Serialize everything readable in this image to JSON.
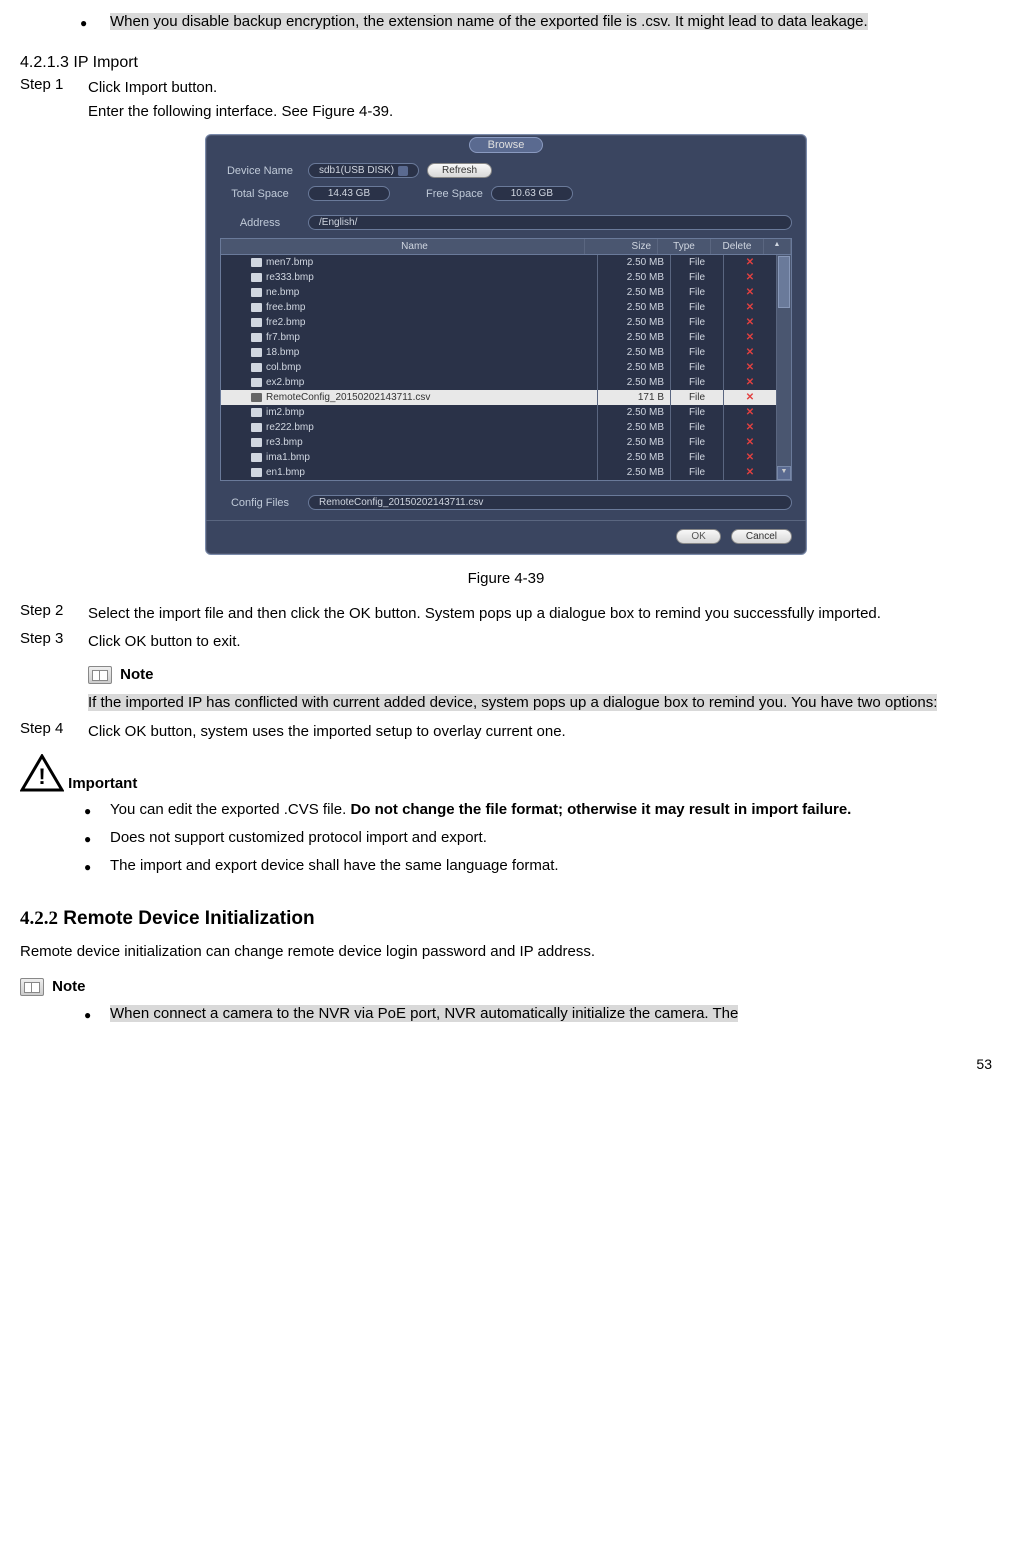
{
  "top_bullet": {
    "prefix": "When you disable backup encryption, the extension name of the exported file is .csv. It might lead to data leakage."
  },
  "section_4213": "4.2.1.3  IP Import",
  "step1_label": "Step 1",
  "step1_line1": "Click Import button.",
  "step1_line2": "Enter the following interface. See Figure 4-39.",
  "browse": {
    "title": "Browse",
    "device_name_label": "Device Name",
    "device_name_value": "sdb1(USB DISK)",
    "refresh": "Refresh",
    "total_space_label": "Total Space",
    "total_space_value": "14.43 GB",
    "free_space_label": "Free Space",
    "free_space_value": "10.63 GB",
    "address_label": "Address",
    "address_value": "/English/",
    "col_name": "Name",
    "col_size": "Size",
    "col_type": "Type",
    "col_del": "Delete",
    "rows": [
      {
        "name": "men7.bmp",
        "size": "2.50 MB",
        "type": "File"
      },
      {
        "name": "re333.bmp",
        "size": "2.50 MB",
        "type": "File"
      },
      {
        "name": "ne.bmp",
        "size": "2.50 MB",
        "type": "File"
      },
      {
        "name": "free.bmp",
        "size": "2.50 MB",
        "type": "File"
      },
      {
        "name": "fre2.bmp",
        "size": "2.50 MB",
        "type": "File"
      },
      {
        "name": "fr7.bmp",
        "size": "2.50 MB",
        "type": "File"
      },
      {
        "name": "18.bmp",
        "size": "2.50 MB",
        "type": "File"
      },
      {
        "name": "col.bmp",
        "size": "2.50 MB",
        "type": "File"
      },
      {
        "name": "ex2.bmp",
        "size": "2.50 MB",
        "type": "File"
      },
      {
        "name": "RemoteConfig_20150202143711.csv",
        "size": "171 B",
        "type": "File",
        "selected": true
      },
      {
        "name": "im2.bmp",
        "size": "2.50 MB",
        "type": "File"
      },
      {
        "name": "re222.bmp",
        "size": "2.50 MB",
        "type": "File"
      },
      {
        "name": "re3.bmp",
        "size": "2.50 MB",
        "type": "File"
      },
      {
        "name": "ima1.bmp",
        "size": "2.50 MB",
        "type": "File"
      },
      {
        "name": "en1.bmp",
        "size": "2.50 MB",
        "type": "File"
      }
    ],
    "config_files_label": "Config Files",
    "config_files_value": "RemoteConfig_20150202143711.csv",
    "ok": "OK",
    "cancel": "Cancel"
  },
  "figure_caption": "Figure 4-39",
  "step2_label": "Step 2",
  "step2_text": "Select the import file and then click the OK button. System pops up a dialogue box to remind you successfully imported.",
  "step3_label": "Step 3",
  "step3_text": "Click OK button to exit.",
  "note_label": "Note",
  "note_text": "If the imported IP has conflicted with current added device, system pops up a dialogue box to remind you. You have two options:",
  "step4_label": "Step 4",
  "step4_text": "Click OK button, system uses the imported setup to overlay current one.",
  "important_label": "Important",
  "important_bullets": {
    "b1_p1": "You can edit the exported .CVS file. ",
    "b1_p2": "Do not change the file format; otherwise it may result in import failure.",
    "b2": "Does not support customized protocol import and export.",
    "b3": "The import and export device shall have the same language format."
  },
  "h422_num": "4.2.2",
  "h422_title": "  Remote Device Initialization",
  "h422_para": "Remote device initialization can change remote device login password and IP address.",
  "note2_label": "Note",
  "bottom_bullet": "When connect a camera to the NVR via PoE port, NVR automatically initialize the camera. The",
  "page_num": "53"
}
